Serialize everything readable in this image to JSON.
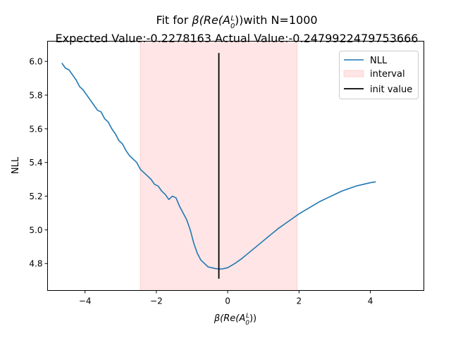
{
  "chart_data": {
    "type": "line",
    "title": {
      "line1_prefix": "Fit for ",
      "line1_symbol": "β(Re(A",
      "line1_sub": "0",
      "line1_sup": "L",
      "line1_close": "))",
      "line1_suffix": "with N=1000",
      "line2": "Expected Value:-0.2278163 Actual Value:-0.2479922479753666"
    },
    "xlabel": {
      "symbol": "β(Re(A",
      "sub": "0",
      "sup": "L",
      "close": "))"
    },
    "ylabel": "NLL",
    "xlim": [
      -5.05,
      5.5
    ],
    "ylim": [
      4.64,
      6.12
    ],
    "xticks": [
      -4,
      -2,
      0,
      2,
      4
    ],
    "xtick_labels": [
      "−4",
      "−2",
      "0",
      "2",
      "4"
    ],
    "yticks": [
      4.8,
      5.0,
      5.2,
      5.4,
      5.6,
      5.8,
      6.0
    ],
    "ytick_labels": [
      "4.8",
      "5.0",
      "5.2",
      "5.4",
      "5.6",
      "5.8",
      "6.0"
    ],
    "grid": false,
    "legend_position": "top-right",
    "colors": {
      "nll": "#1f77b4",
      "interval": "#ff9999",
      "init": "#000000"
    },
    "interval": {
      "label": "interval",
      "x": [
        -2.45,
        1.95
      ]
    },
    "init_value": {
      "label": "init value",
      "x": -0.248,
      "y": [
        4.71,
        6.05
      ]
    },
    "series": [
      {
        "name": "NLL",
        "x": [
          -4.65,
          -4.55,
          -4.45,
          -4.35,
          -4.25,
          -4.15,
          -4.05,
          -3.95,
          -3.85,
          -3.75,
          -3.65,
          -3.55,
          -3.45,
          -3.35,
          -3.25,
          -3.15,
          -3.05,
          -2.95,
          -2.85,
          -2.75,
          -2.65,
          -2.55,
          -2.45,
          -2.35,
          -2.25,
          -2.15,
          -2.05,
          -1.95,
          -1.85,
          -1.75,
          -1.65,
          -1.55,
          -1.45,
          -1.35,
          -1.25,
          -1.15,
          -1.05,
          -0.95,
          -0.85,
          -0.75,
          -0.65,
          -0.55,
          -0.45,
          -0.35,
          -0.25,
          -0.15,
          0.0,
          0.2,
          0.4,
          0.6,
          0.8,
          1.0,
          1.2,
          1.4,
          1.6,
          1.8,
          2.0,
          2.2,
          2.4,
          2.6,
          2.8,
          3.0,
          3.2,
          3.4,
          3.6,
          3.8,
          4.0,
          4.15
        ],
        "y": [
          5.99,
          5.96,
          5.95,
          5.92,
          5.89,
          5.85,
          5.83,
          5.8,
          5.77,
          5.74,
          5.71,
          5.7,
          5.66,
          5.64,
          5.6,
          5.57,
          5.53,
          5.51,
          5.47,
          5.44,
          5.42,
          5.4,
          5.36,
          5.34,
          5.32,
          5.3,
          5.27,
          5.26,
          5.23,
          5.21,
          5.18,
          5.2,
          5.19,
          5.14,
          5.1,
          5.06,
          5.0,
          4.92,
          4.86,
          4.82,
          4.8,
          4.78,
          4.775,
          4.77,
          4.768,
          4.768,
          4.775,
          4.8,
          4.83,
          4.865,
          4.9,
          4.935,
          4.97,
          5.005,
          5.035,
          5.065,
          5.095,
          5.12,
          5.145,
          5.17,
          5.19,
          5.21,
          5.23,
          5.245,
          5.26,
          5.27,
          5.28,
          5.285
        ]
      }
    ]
  }
}
